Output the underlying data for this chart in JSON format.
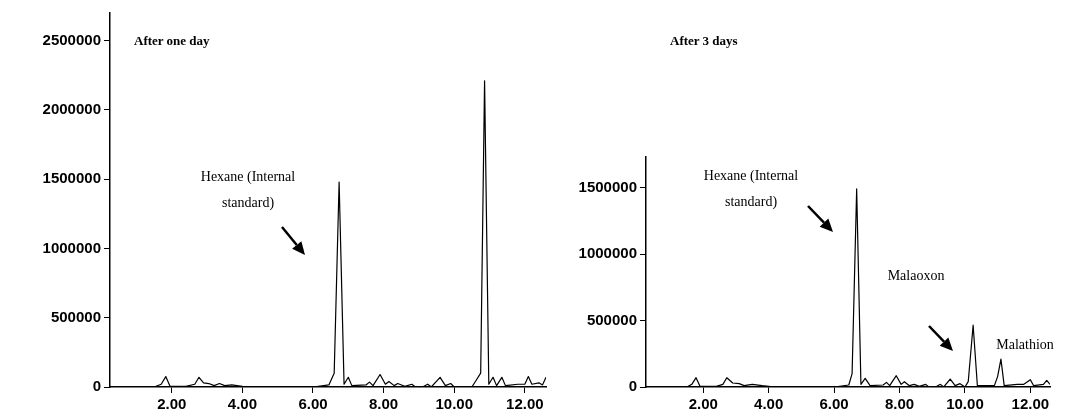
{
  "chart_data": [
    {
      "type": "line",
      "title": "After one day",
      "xlim": [
        0.25,
        12.6
      ],
      "ylim": [
        0,
        2700000
      ],
      "xticks": [
        {
          "value": 2,
          "label": "2.00"
        },
        {
          "value": 4,
          "label": "4.00"
        },
        {
          "value": 6,
          "label": "6.00"
        },
        {
          "value": 8,
          "label": "8.00"
        },
        {
          "value": 10,
          "label": "10.00"
        },
        {
          "value": 12,
          "label": "12.00"
        }
      ],
      "yticks": [
        0,
        500000,
        1000000,
        1500000,
        2000000,
        2500000
      ],
      "grid": false,
      "marker": "none",
      "line_style": "solid",
      "series": [
        {
          "color": "#000000",
          "x": [
            0.25,
            1.5,
            1.7,
            1.83,
            1.95,
            2.4,
            2.65,
            2.77,
            2.9,
            3.05,
            3.2,
            3.35,
            3.5,
            3.7,
            4.0,
            4.3,
            6.0,
            6.45,
            6.6,
            6.74,
            6.88,
            7.0,
            7.1,
            7.5,
            7.6,
            7.7,
            7.9,
            8.05,
            8.15,
            8.3,
            8.4,
            8.6,
            8.8,
            8.9,
            9.1,
            9.25,
            9.35,
            9.6,
            9.75,
            9.9,
            10.0,
            10.5,
            10.6,
            10.75,
            10.86,
            10.98,
            11.1,
            11.2,
            11.35,
            11.45,
            11.8,
            12.0,
            12.1,
            12.2,
            12.4,
            12.5,
            12.6
          ],
          "values": [
            0,
            0,
            20000,
            75000,
            5000,
            5000,
            20000,
            70000,
            30000,
            25000,
            10000,
            25000,
            10000,
            15000,
            5000,
            0,
            0,
            15000,
            100000,
            1480000,
            20000,
            70000,
            10000,
            15000,
            35000,
            10000,
            90000,
            20000,
            40000,
            10000,
            25000,
            5000,
            20000,
            0,
            0,
            20000,
            0,
            70000,
            10000,
            25000,
            0,
            0,
            40000,
            100000,
            2210000,
            20000,
            70000,
            10000,
            70000,
            10000,
            20000,
            20000,
            75000,
            20000,
            30000,
            15000,
            70000
          ]
        }
      ],
      "annotations": [
        "Hexane (Internal standard)"
      ]
    },
    {
      "type": "line",
      "title": "After 3 days",
      "xlim": [
        0.25,
        12.6
      ],
      "ylim": [
        0,
        1730000
      ],
      "xticks": [
        {
          "value": 2,
          "label": "2.00"
        },
        {
          "value": 4,
          "label": "4.00"
        },
        {
          "value": 6,
          "label": "6.00"
        },
        {
          "value": 8,
          "label": "8.00"
        },
        {
          "value": 10,
          "label": "10.00"
        },
        {
          "value": 12,
          "label": "12.00"
        }
      ],
      "yticks": [
        0,
        500000,
        1000000,
        1500000
      ],
      "grid": false,
      "marker": "none",
      "line_style": "solid",
      "series": [
        {
          "color": "#000000",
          "x": [
            0.25,
            1.5,
            1.65,
            1.78,
            1.9,
            2.4,
            2.6,
            2.72,
            2.9,
            3.1,
            3.25,
            3.5,
            3.8,
            4.2,
            6.0,
            6.45,
            6.55,
            6.69,
            6.82,
            6.95,
            7.1,
            7.5,
            7.6,
            7.7,
            7.9,
            8.05,
            8.15,
            8.3,
            8.45,
            8.6,
            8.8,
            8.9,
            9.1,
            9.25,
            9.35,
            9.55,
            9.7,
            9.85,
            10.0,
            10.1,
            10.25,
            10.38,
            10.6,
            10.9,
            11.0,
            11.1,
            11.2,
            11.6,
            11.8,
            12.0,
            12.1,
            12.4,
            12.5,
            12.6
          ],
          "values": [
            0,
            0,
            20000,
            70000,
            5000,
            5000,
            20000,
            70000,
            30000,
            25000,
            10000,
            20000,
            10000,
            0,
            0,
            15000,
            100000,
            1490000,
            20000,
            65000,
            10000,
            15000,
            35000,
            10000,
            85000,
            20000,
            40000,
            10000,
            20000,
            5000,
            20000,
            0,
            0,
            20000,
            0,
            60000,
            10000,
            25000,
            0,
            40000,
            465000,
            10000,
            10000,
            10000,
            80000,
            210000,
            10000,
            20000,
            20000,
            55000,
            10000,
            20000,
            50000,
            20000
          ]
        }
      ],
      "annotations": [
        "Hexane (Internal standard)",
        "Malaoxon",
        "Malathion"
      ]
    }
  ]
}
